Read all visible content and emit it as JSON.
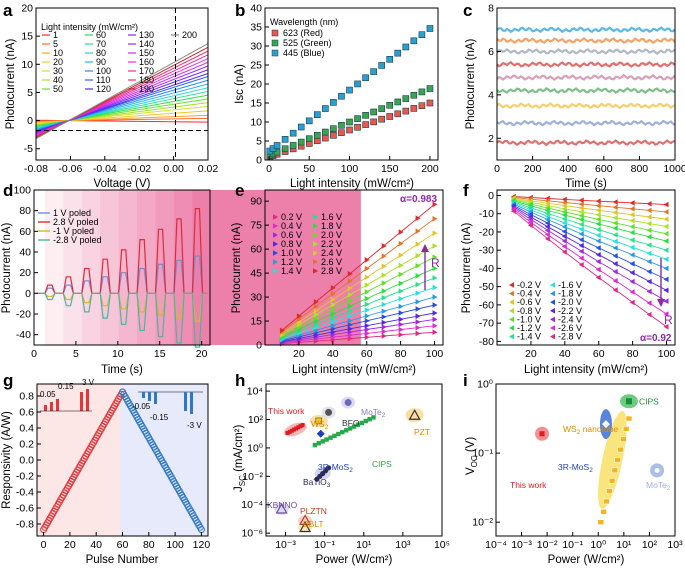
{
  "panels": {
    "a": {
      "letter": "a",
      "xlabel": "Voltage (V)",
      "ylabel": "Photocurrent (nA)",
      "xticks": [
        "-0.08",
        "-0.06",
        "-0.04",
        "-0.02",
        "0.00",
        "0.02"
      ],
      "yticks": [
        "-5",
        "0",
        "5",
        "10",
        "15",
        "20"
      ],
      "legend_title": "Light intensity (mW/cm²)",
      "legend_items": [
        "1",
        "5",
        "10",
        "20",
        "30",
        "40",
        "50",
        "60",
        "70",
        "80",
        "90",
        "100",
        "110",
        "120",
        "130",
        "140",
        "150",
        "160",
        "170",
        "180",
        "190",
        "200"
      ]
    },
    "b": {
      "letter": "b",
      "xlabel": "Light intensity (mW/cm²)",
      "ylabel": "Isc (nA)",
      "xticks": [
        "0",
        "50",
        "100",
        "150",
        "200"
      ],
      "yticks": [
        "0",
        "5",
        "10",
        "15",
        "20",
        "25",
        "30",
        "35",
        "40"
      ],
      "legend_title": "Wavelength (nm)",
      "legend_items": [
        "623 (Red)",
        "525 (Green)",
        "445 (Blue)"
      ]
    },
    "c": {
      "letter": "c",
      "xlabel": "Time (s)",
      "ylabel": "Photocurrent (nA)",
      "xticks": [
        "0",
        "200",
        "400",
        "600",
        "800",
        "1000"
      ],
      "yticks": [
        "2",
        "4",
        "6",
        "8"
      ]
    },
    "d": {
      "letter": "d",
      "xlabel": "Time (s)",
      "ylabel": "Photocurrent (nA)",
      "xticks": [
        "0",
        "5",
        "10",
        "15",
        "20"
      ],
      "yticks": [
        "-40",
        "-20",
        "0",
        "20",
        "40",
        "60",
        "80",
        "100"
      ],
      "legend_items": [
        "1 V   poled",
        "2.8 V  poled",
        "-1 V   poled",
        "-2.8 V  poled"
      ]
    },
    "e": {
      "letter": "e",
      "xlabel": "Light intensity (mW/cm²)",
      "ylabel": "Photocurrent (nA)",
      "xticks": [
        "20",
        "40",
        "60",
        "80",
        "100"
      ],
      "yticks": [
        "0",
        "15",
        "30",
        "45",
        "60",
        "75",
        "90"
      ],
      "legend_items": [
        "0.2 V",
        "0.4 V",
        "0.6 V",
        "0.8 V",
        "1.0 V",
        "1.2 V",
        "1.4 V",
        "1.6 V",
        "1.8 V",
        "2.0 V",
        "2.2 V",
        "2.4 V",
        "2.6 V",
        "2.8 V"
      ],
      "alpha": "α=0.983",
      "r_label": "R"
    },
    "f": {
      "letter": "f",
      "xlabel": "Light intensity (mW/cm²)",
      "ylabel": "Photocurrent (nA)",
      "xticks": [
        "20",
        "40",
        "60",
        "80",
        "100"
      ],
      "yticks": [
        "0",
        "-10",
        "-20",
        "-30",
        "-40",
        "-50",
        "-60",
        "-70",
        "-80"
      ],
      "legend_items": [
        "-0.2 V",
        "-0.4 V",
        "-0.6 V",
        "-0.8 V",
        "-1.0 V",
        "-1.2 V",
        "-1.4 V",
        "-1.6 V",
        "-1.8 V",
        "-2.0 V",
        "-2.2 V",
        "-2.4 V",
        "-2.6 V",
        "-2.8 V"
      ],
      "alpha": "α=0.92",
      "r_label": "R"
    },
    "g": {
      "letter": "g",
      "xlabel": "Pulse Number",
      "ylabel": "Responsivity (A/W)",
      "xticks": [
        "0",
        "20",
        "40",
        "60",
        "80",
        "100",
        "120"
      ],
      "yticks": [
        "-0.8",
        "-0.6",
        "-0.4",
        "-0.2",
        "0.0",
        "0.2",
        "0.4",
        "0.6",
        "0.8"
      ],
      "inset_pos": [
        "0.05",
        "0.15",
        "3 V"
      ],
      "inset_neg": [
        "-0.05",
        "-0.15",
        "-3 V"
      ]
    },
    "h": {
      "letter": "h",
      "xlabel": "Power (W/cm²)",
      "ylabel": "J",
      "ylabel_sub": "SC",
      "ylabel_rest": " (mA/cm²)",
      "xticks": [
        "10⁻³",
        "10⁻¹",
        "10¹",
        "10³",
        "10⁵"
      ],
      "yticks": [
        "10⁻⁶",
        "10⁻⁴",
        "10⁻²",
        "10⁰",
        "10²",
        "10⁴"
      ],
      "labels": {
        "this_work": "This work",
        "ws2": "WS",
        "ws2_sub": "2",
        "bfo": "BFO",
        "mote2": "MoTe",
        "mote2_sub": "2",
        "cips": "CIPS",
        "mos2": "3R-MoS",
        "mos2_sub": "2",
        "batio3": "BaTiO",
        "batio3_sub": "3",
        "pzt": "PZT",
        "kbnno": "KBNNO",
        "plztn": "PLZTN",
        "bblt": "BBLT"
      }
    },
    "i": {
      "letter": "i",
      "xlabel": "Power (W/cm²)",
      "ylabel": "V",
      "ylabel_sub": "OC",
      "ylabel_rest": " (V)",
      "xticks": [
        "10⁻⁴",
        "10⁻³",
        "10⁻²",
        "10⁻¹",
        "10⁰",
        "10¹",
        "10²",
        "10³"
      ],
      "yticks": [
        "10⁻²",
        "10⁻¹",
        "10⁰"
      ],
      "labels": {
        "cips": "CIPS",
        "ws2": "WS",
        "ws2_sub": "2",
        "ws2_rest": " nanotube",
        "mos2": "3R-MoS",
        "mos2_sub": "2",
        "this_work": "This work",
        "mote2": "MoTe",
        "mote2_sub": "2"
      }
    }
  },
  "chart_data": [
    {
      "panel": "a",
      "type": "line",
      "x_range": [
        -0.08,
        0.02
      ],
      "ylim": [
        -7,
        20
      ],
      "x_intercept": -0.061,
      "intensities_mWcm2": [
        1,
        5,
        10,
        20,
        30,
        40,
        50,
        60,
        70,
        80,
        90,
        100,
        110,
        120,
        130,
        140,
        150,
        160,
        170,
        180,
        190,
        200
      ],
      "current_at_0V_nA": [
        -0.2,
        0.3,
        0.7,
        1.3,
        1.9,
        2.4,
        2.9,
        3.4,
        3.9,
        4.4,
        4.9,
        5.4,
        5.9,
        6.3,
        6.8,
        7.3,
        7.8,
        8.3,
        8.8,
        9.3,
        9.8,
        10.3
      ],
      "colors": [
        "#ff2b2b",
        "#ff6a2b",
        "#ffa02b",
        "#f2c82b",
        "#d7e02b",
        "#a6e02b",
        "#6fe02b",
        "#2be04f",
        "#2be09a",
        "#2bd6d6",
        "#2bb4f0",
        "#2b8cf0",
        "#2b62f0",
        "#4b2bf0",
        "#7a2bf0",
        "#a32bf0",
        "#cc2bf0",
        "#f02bdc",
        "#f02b9e",
        "#f02b6a",
        "#c22b2b",
        "#888888"
      ]
    },
    {
      "panel": "b",
      "type": "scatter",
      "ylim": [
        0,
        40
      ],
      "xlim": [
        -5,
        210
      ],
      "x": [
        1,
        5,
        10,
        20,
        30,
        40,
        50,
        60,
        70,
        80,
        90,
        100,
        110,
        120,
        130,
        140,
        150,
        160,
        170,
        180,
        190,
        200
      ],
      "series": [
        {
          "name": "623 (Red)",
          "slope": 0.071,
          "offset": 0.8,
          "color": "#e8584f"
        },
        {
          "name": "525 (Green)",
          "slope": 0.088,
          "offset": 1.2,
          "color": "#38a552"
        },
        {
          "name": "445 (Blue)",
          "slope": 0.162,
          "offset": 2.2,
          "color": "#2b9fce"
        }
      ]
    },
    {
      "panel": "c",
      "type": "line",
      "xlim": [
        0,
        1000
      ],
      "ylim": [
        1,
        8
      ],
      "levels": [
        1.8,
        2.7,
        3.5,
        4.2,
        4.8,
        5.4,
        6.0,
        6.5,
        7.0
      ],
      "colors": [
        "#e0706f",
        "#9fb1d6",
        "#f5cf6e",
        "#7fbf8a",
        "#d9a1b7",
        "#e0706f",
        "#b0b9c9",
        "#f2a46a",
        "#5bb8e8"
      ]
    },
    {
      "panel": "d",
      "type": "line",
      "xlim": [
        0,
        21
      ],
      "ylim": [
        -50,
        100
      ],
      "series": [
        {
          "name": "1 V poled",
          "peaks": [
            5,
            8,
            12,
            16,
            20,
            24,
            28,
            32,
            36
          ],
          "color": "#6f8fd9"
        },
        {
          "name": "2.8 V poled",
          "peaks": [
            8,
            16,
            24,
            33,
            42,
            52,
            62,
            72,
            82
          ],
          "color": "#e02b39"
        },
        {
          "name": "-1 V poled",
          "peaks": [
            -3,
            -6,
            -9,
            -12,
            -15,
            -18,
            -21,
            -24,
            -27
          ],
          "color": "#d6b832"
        },
        {
          "name": "-2.8 V poled",
          "peaks": [
            -6,
            -12,
            -18,
            -24,
            -30,
            -36,
            -42,
            -48,
            -52
          ],
          "color": "#4bb5a3"
        }
      ]
    },
    {
      "panel": "e",
      "type": "line",
      "xlim": [
        0,
        105
      ],
      "ylim": [
        0,
        97
      ],
      "x": [
        10,
        20,
        30,
        40,
        50,
        60,
        70,
        80,
        90,
        100
      ],
      "values_at_100": [
        8,
        12,
        16,
        20,
        25,
        30,
        36,
        42,
        48,
        55,
        62,
        70,
        79,
        88
      ]
    },
    {
      "panel": "f",
      "type": "line",
      "xlim": [
        0,
        105
      ],
      "ylim": [
        -82,
        3
      ],
      "x": [
        10,
        20,
        30,
        40,
        50,
        60,
        70,
        80,
        90,
        100
      ],
      "values_at_100": [
        -5,
        -9,
        -13,
        -17,
        -21,
        -25,
        -30,
        -35,
        -40,
        -46,
        -52,
        -58,
        -65,
        -72
      ]
    },
    {
      "panel": "g",
      "type": "scatter",
      "xlim": [
        -5,
        125
      ],
      "ylim": [
        -0.95,
        0.95
      ],
      "potentiation": {
        "pulses": [
          0,
          60
        ],
        "responsivity": [
          -0.87,
          0.85
        ],
        "color": "#e2383c"
      },
      "depression": {
        "pulses": [
          60,
          120
        ],
        "responsivity": [
          0.85,
          -0.87
        ],
        "color": "#2f78c4"
      }
    },
    {
      "panel": "h",
      "type": "scatter",
      "x_scale": "log",
      "y_scale": "log",
      "xlim_exp": [
        -4,
        5
      ],
      "ylim_exp": [
        -6.2,
        4.5
      ],
      "points": [
        {
          "name": "This work",
          "x_exp": -2.5,
          "y_exp": 1.3
        },
        {
          "name": "WS2",
          "x_exp": -1.3,
          "y_exp": 1.9
        },
        {
          "name": "BFO",
          "x_exp": -0.8,
          "y_exp": 2.5
        },
        {
          "name": "MoTe2",
          "x_exp": 0.2,
          "y_exp": 3.2
        },
        {
          "name": "CIPS",
          "x_exp": 1.2,
          "y_exp": 1.6
        },
        {
          "name": "3R-MoS2",
          "x_exp": -1.2,
          "y_exp": 1.0
        },
        {
          "name": "BaTiO3",
          "x_exp": -1.1,
          "y_exp": -1.8
        },
        {
          "name": "PZT",
          "x_exp": 3.6,
          "y_exp": 2.3
        },
        {
          "name": "KBNNO",
          "x_exp": -3.2,
          "y_exp": -4.3
        },
        {
          "name": "PLZTN",
          "x_exp": -2.0,
          "y_exp": -5.1
        },
        {
          "name": "BBLT",
          "x_exp": -2.0,
          "y_exp": -5.6
        }
      ]
    },
    {
      "panel": "i",
      "type": "scatter",
      "x_scale": "log",
      "y_scale": "log",
      "xlim_exp": [
        -4,
        3
      ],
      "ylim_exp": [
        -2.2,
        0
      ],
      "points": [
        {
          "name": "This work",
          "x_exp": -2.2,
          "y_exp": -0.72
        },
        {
          "name": "WS2 nanotube",
          "x_exp": 0.6,
          "y_exp": -0.9
        },
        {
          "name": "3R-MoS2",
          "x_exp": 0.3,
          "y_exp": -0.58
        },
        {
          "name": "CIPS",
          "x_exp": 1.2,
          "y_exp": -0.25
        },
        {
          "name": "MoTe2",
          "x_exp": 2.3,
          "y_exp": -1.25
        }
      ]
    }
  ]
}
